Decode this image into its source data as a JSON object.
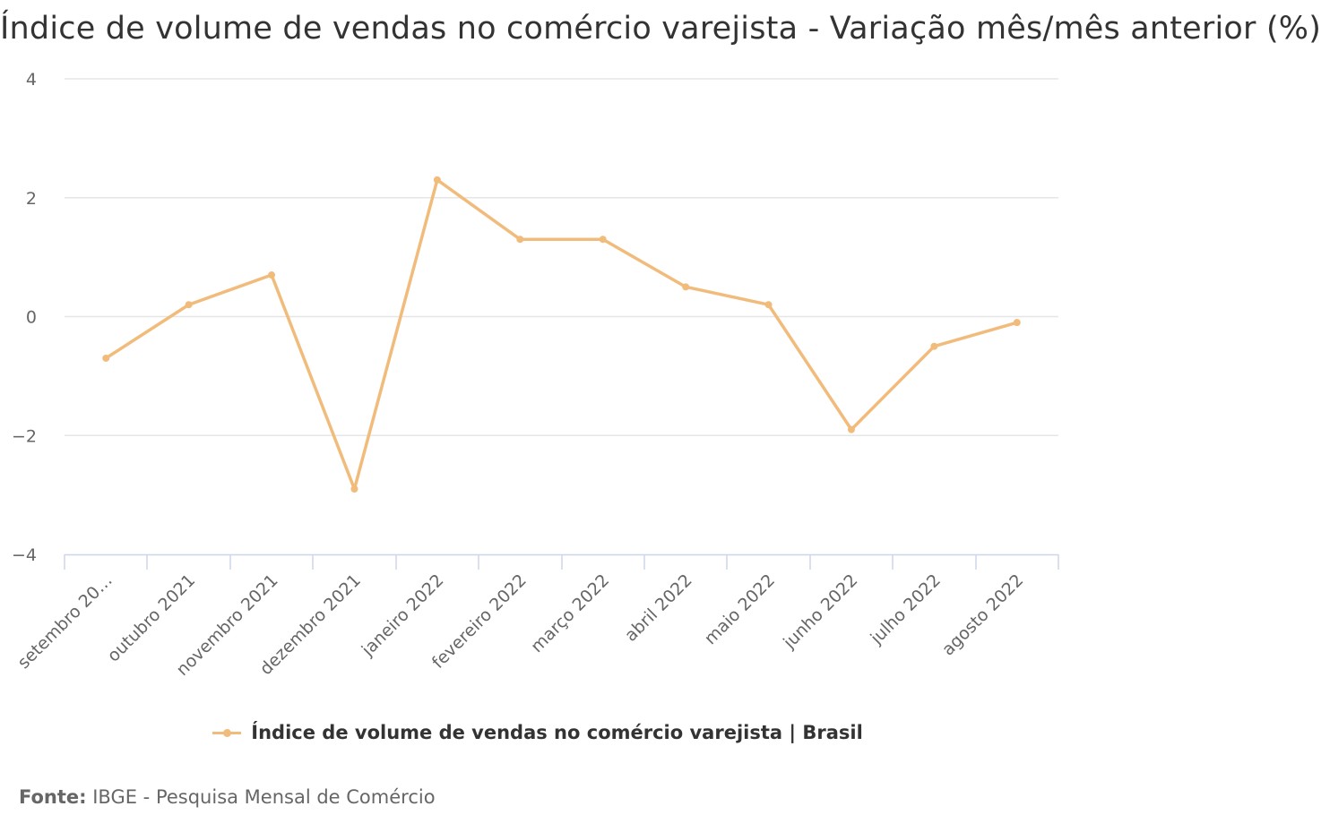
{
  "chart_data": {
    "type": "line",
    "title": "Índice de volume de vendas no comércio varejista - Variação mês/mês anterior (%)",
    "categories": [
      "setembro 2021",
      "outubro 2021",
      "novembro 2021",
      "dezembro 2021",
      "janeiro 2022",
      "fevereiro 2022",
      "março 2022",
      "abril 2022",
      "maio 2022",
      "junho 2022",
      "julho 2022",
      "agosto 2022"
    ],
    "category_labels_shown": [
      "setembro 20…",
      "outubro 2021",
      "novembro 2021",
      "dezembro 2021",
      "janeiro 2022",
      "fevereiro 2022",
      "março 2022",
      "abril 2022",
      "maio 2022",
      "junho 2022",
      "julho 2022",
      "agosto 2022"
    ],
    "series": [
      {
        "name": "Índice de volume de vendas no comércio varejista | Brasil",
        "values": [
          -0.7,
          0.2,
          0.7,
          -2.9,
          2.3,
          1.3,
          1.3,
          0.5,
          0.2,
          -1.9,
          -0.5,
          -0.1
        ]
      }
    ],
    "ylim": [
      -4,
      4
    ],
    "y_ticks": [
      4,
      2,
      0,
      -2,
      -4
    ],
    "y_tick_labels": [
      "4",
      "2",
      "0",
      "−2",
      "−4"
    ],
    "xlabel": "",
    "ylabel": "",
    "grid": true,
    "legend": "bottom-center",
    "colors": {
      "series": "#f1bc7b",
      "grid": "#e6e6e6",
      "axis": "#ccd6eb",
      "tick_text": "#666666"
    }
  },
  "legend": {
    "label": "Índice de volume de vendas no comércio varejista | Brasil"
  },
  "source": {
    "label": "Fonte:",
    "text": " IBGE - Pesquisa Mensal de Comércio"
  }
}
